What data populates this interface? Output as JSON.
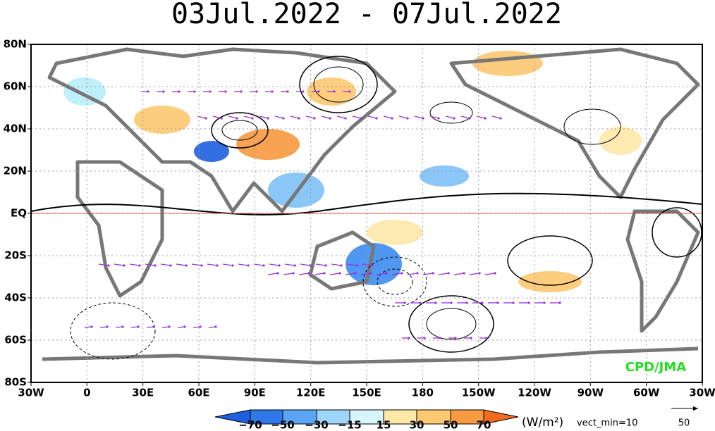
{
  "title": "03Jul.2022 - 07Jul.2022",
  "lat_labels": [
    "80N",
    "60N",
    "40N",
    "20N",
    "EQ",
    "20S",
    "40S",
    "60S",
    "80S"
  ],
  "lon_labels": [
    "30W",
    "0",
    "30E",
    "60E",
    "90E",
    "120E",
    "150E",
    "180",
    "150W",
    "120W",
    "90W",
    "60W",
    "30W"
  ],
  "colorbar_labels": [
    "−70",
    "−50",
    "−30",
    "−15",
    "15",
    "30",
    "50",
    "70"
  ],
  "units": "(W/m²)",
  "vector_note": "vect_min=10",
  "reference_vector": "50",
  "credit": "CPD/JMA"
}
